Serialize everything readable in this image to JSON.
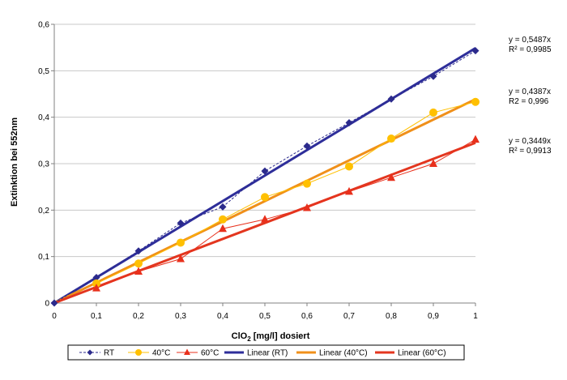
{
  "chart_data": {
    "type": "line",
    "title": "",
    "xlabel_main": "ClO",
    "xlabel_sub": "2",
    "xlabel_rest": " [mg/l] dosiert",
    "ylabel": "Extinktion bei 552nm",
    "xlim": [
      0,
      1
    ],
    "ylim": [
      0,
      0.6
    ],
    "x_ticks": [
      0,
      0.1,
      0.2,
      0.3,
      0.4,
      0.5,
      0.6,
      0.7,
      0.8,
      0.9,
      1
    ],
    "x_tick_labels": [
      "0",
      "0,1",
      "0,2",
      "0,3",
      "0,4",
      "0,5",
      "0,6",
      "0,7",
      "0,8",
      "0,9",
      "1"
    ],
    "y_ticks": [
      0,
      0.1,
      0.2,
      0.3,
      0.4,
      0.5,
      0.6
    ],
    "y_tick_labels": [
      "0",
      "0,1",
      "0,2",
      "0,3",
      "0,4",
      "0,5",
      "0,6"
    ],
    "grid": "horizontal",
    "legend_position": "bottom",
    "series": [
      {
        "name": "RT",
        "color": "#2b2a8c",
        "marker": "diamond",
        "style": "dashed",
        "x": [
          0,
          0.1,
          0.2,
          0.3,
          0.4,
          0.5,
          0.6,
          0.7,
          0.8,
          0.9,
          1
        ],
        "y": [
          0,
          0.055,
          0.112,
          0.172,
          0.207,
          0.284,
          0.338,
          0.388,
          0.439,
          0.488,
          0.543
        ]
      },
      {
        "name": "40°C",
        "color": "#ffc000",
        "marker": "circle",
        "style": "solid",
        "x": [
          0.1,
          0.2,
          0.3,
          0.4,
          0.5,
          0.6,
          0.7,
          0.8,
          0.9,
          1
        ],
        "y": [
          0.042,
          0.085,
          0.13,
          0.18,
          0.228,
          0.257,
          0.294,
          0.354,
          0.41,
          0.433
        ]
      },
      {
        "name": "60°C",
        "color": "#e8301c",
        "marker": "triangle",
        "style": "solid",
        "x": [
          0.1,
          0.2,
          0.3,
          0.4,
          0.5,
          0.6,
          0.7,
          0.8,
          0.9,
          1
        ],
        "y": [
          0.032,
          0.068,
          0.095,
          0.16,
          0.18,
          0.205,
          0.24,
          0.27,
          0.3,
          0.352
        ]
      }
    ],
    "trendlines": [
      {
        "name": "Linear (RT)",
        "color": "#2e2e9a",
        "slope": 0.5487,
        "equation": "y = 0,5487x",
        "r2": "R² = 0,9985"
      },
      {
        "name": "Linear (40°C)",
        "color": "#f0901a",
        "slope": 0.4387,
        "equation": "y = 0,4387x",
        "r2": "R2 = 0,996"
      },
      {
        "name": "Linear (60°C)",
        "color": "#e3361f",
        "slope": 0.3449,
        "equation": "y = 0,3449x",
        "r2": "R² = 0,9913"
      }
    ]
  }
}
